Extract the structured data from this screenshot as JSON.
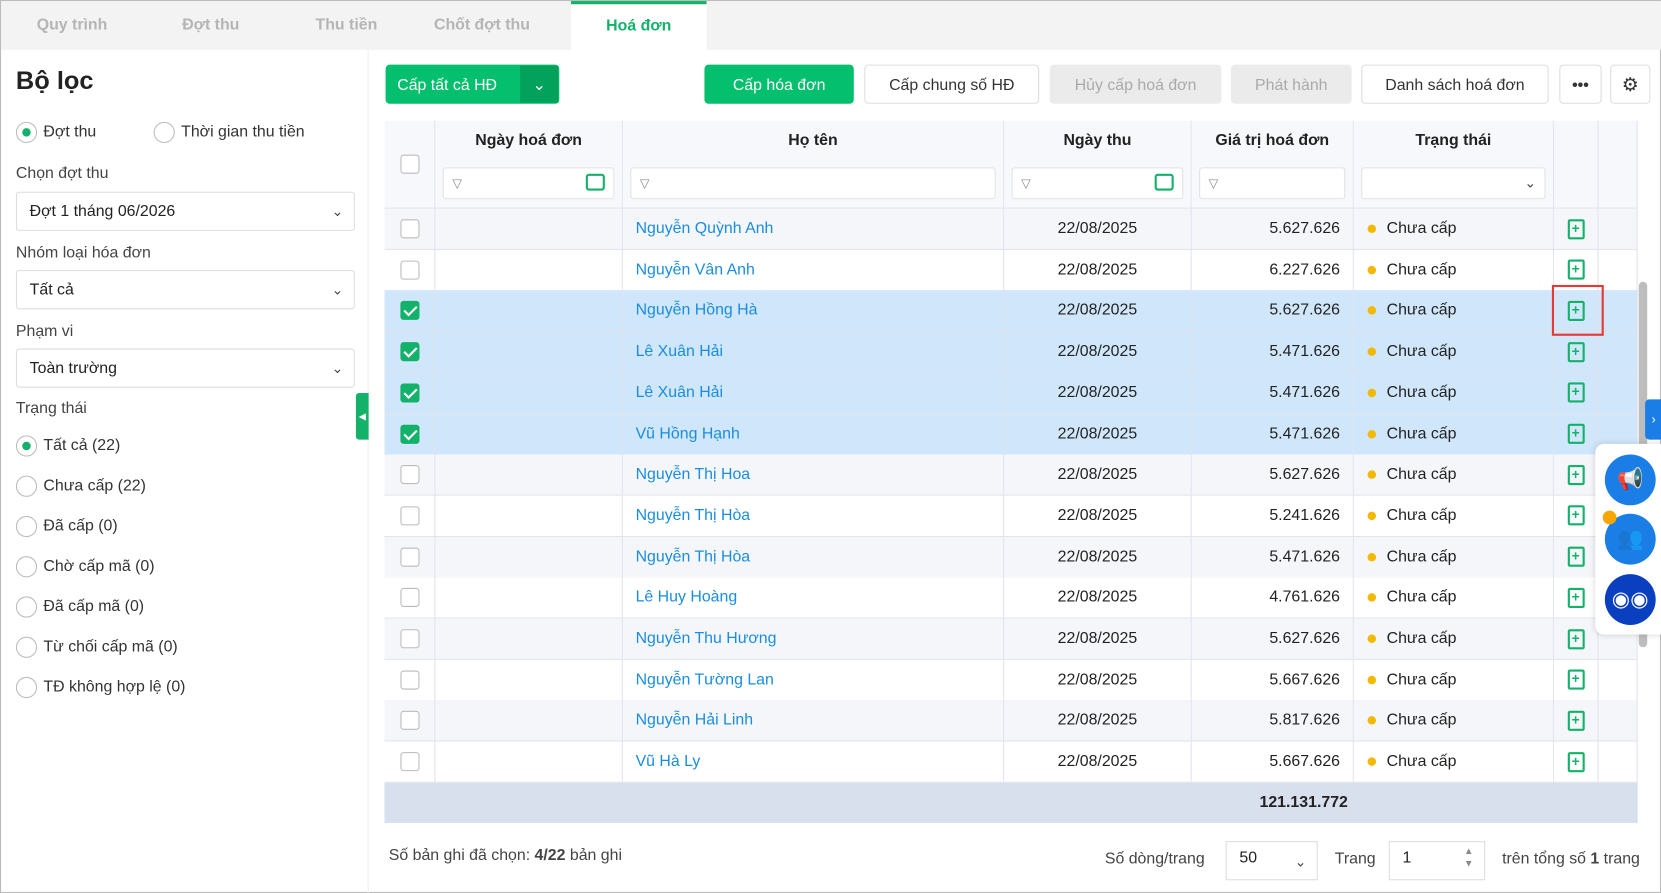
{
  "tabs": [
    "Quy trình",
    "Đợt thu",
    "Thu tiền",
    "Chốt đợt thu",
    "Hoá đơn"
  ],
  "active_tab": 4,
  "sidebar": {
    "title": "Bộ lọc",
    "mode_options": [
      "Đợt thu",
      "Thời gian thu tiền"
    ],
    "mode_selected": 0,
    "batch_label": "Chọn đợt thu",
    "batch_value": "Đợt 1 tháng 06/2026",
    "group_label": "Nhóm loại hóa đơn",
    "group_value": "Tất cả",
    "scope_label": "Phạm vi",
    "scope_value": "Toàn trường",
    "status_label": "Trạng thái",
    "status_options": [
      "Tất cả (22)",
      "Chưa cấp (22)",
      "Đã cấp (0)",
      "Chờ cấp mã (0)",
      "Đã cấp mã (0)",
      "Từ chối cấp mã (0)",
      "TĐ không hợp lệ (0)"
    ],
    "status_selected": 0
  },
  "toolbar": {
    "issue_all": "Cấp tất cả HĐ",
    "issue": "Cấp hóa đơn",
    "issue_common": "Cấp chung số HĐ",
    "cancel": "Hủy cấp hoá đơn",
    "publish": "Phát hành",
    "list": "Danh sách hoá đơn"
  },
  "table": {
    "columns": [
      "Ngày hoá đơn",
      "Họ tên",
      "Ngày thu",
      "Giá trị hoá đơn",
      "Trạng thái"
    ],
    "rows": [
      {
        "name": "Nguyễn Quỳnh Anh",
        "date": "22/08/2025",
        "value": "5.627.626",
        "status": "Chưa cấp",
        "checked": false
      },
      {
        "name": "Nguyễn Vân Anh",
        "date": "22/08/2025",
        "value": "6.227.626",
        "status": "Chưa cấp",
        "checked": false
      },
      {
        "name": "Nguyễn Hồng Hà",
        "date": "22/08/2025",
        "value": "5.627.626",
        "status": "Chưa cấp",
        "checked": true
      },
      {
        "name": "Lê Xuân Hải",
        "date": "22/08/2025",
        "value": "5.471.626",
        "status": "Chưa cấp",
        "checked": true
      },
      {
        "name": "Lê Xuân Hải",
        "date": "22/08/2025",
        "value": "5.471.626",
        "status": "Chưa cấp",
        "checked": true
      },
      {
        "name": "Vũ Hồng Hạnh",
        "date": "22/08/2025",
        "value": "5.471.626",
        "status": "Chưa cấp",
        "checked": true
      },
      {
        "name": "Nguyễn Thị Hoa",
        "date": "22/08/2025",
        "value": "5.627.626",
        "status": "Chưa cấp",
        "checked": false
      },
      {
        "name": "Nguyễn Thị Hòa",
        "date": "22/08/2025",
        "value": "5.241.626",
        "status": "Chưa cấp",
        "checked": false
      },
      {
        "name": "Nguyễn Thị Hòa",
        "date": "22/08/2025",
        "value": "5.471.626",
        "status": "Chưa cấp",
        "checked": false
      },
      {
        "name": "Lê Huy Hoàng",
        "date": "22/08/2025",
        "value": "4.761.626",
        "status": "Chưa cấp",
        "checked": false
      },
      {
        "name": "Nguyễn Thu Hương",
        "date": "22/08/2025",
        "value": "5.627.626",
        "status": "Chưa cấp",
        "checked": false
      },
      {
        "name": "Nguyễn Tường Lan",
        "date": "22/08/2025",
        "value": "5.667.626",
        "status": "Chưa cấp",
        "checked": false
      },
      {
        "name": "Nguyễn Hải Linh",
        "date": "22/08/2025",
        "value": "5.817.626",
        "status": "Chưa cấp",
        "checked": false
      },
      {
        "name": "Vũ Hà Ly",
        "date": "22/08/2025",
        "value": "5.667.626",
        "status": "Chưa cấp",
        "checked": false
      }
    ],
    "total": "121.131.772"
  },
  "footer": {
    "selected_prefix": "Số bản ghi đã chọn: ",
    "selected_count": "4/22",
    "selected_suffix": " bản ghi",
    "rows_label": "Số dòng/trang",
    "rows_value": "50",
    "page_label": "Trang",
    "page_value": "1",
    "total_prefix": "trên tổng số ",
    "total_pages": "1",
    "total_suffix": " trang"
  },
  "colors": {
    "accent": "#04bf6d",
    "link": "#1a8de0",
    "selected_row": "#cfe6fb",
    "status_dot": "#f3b800"
  }
}
